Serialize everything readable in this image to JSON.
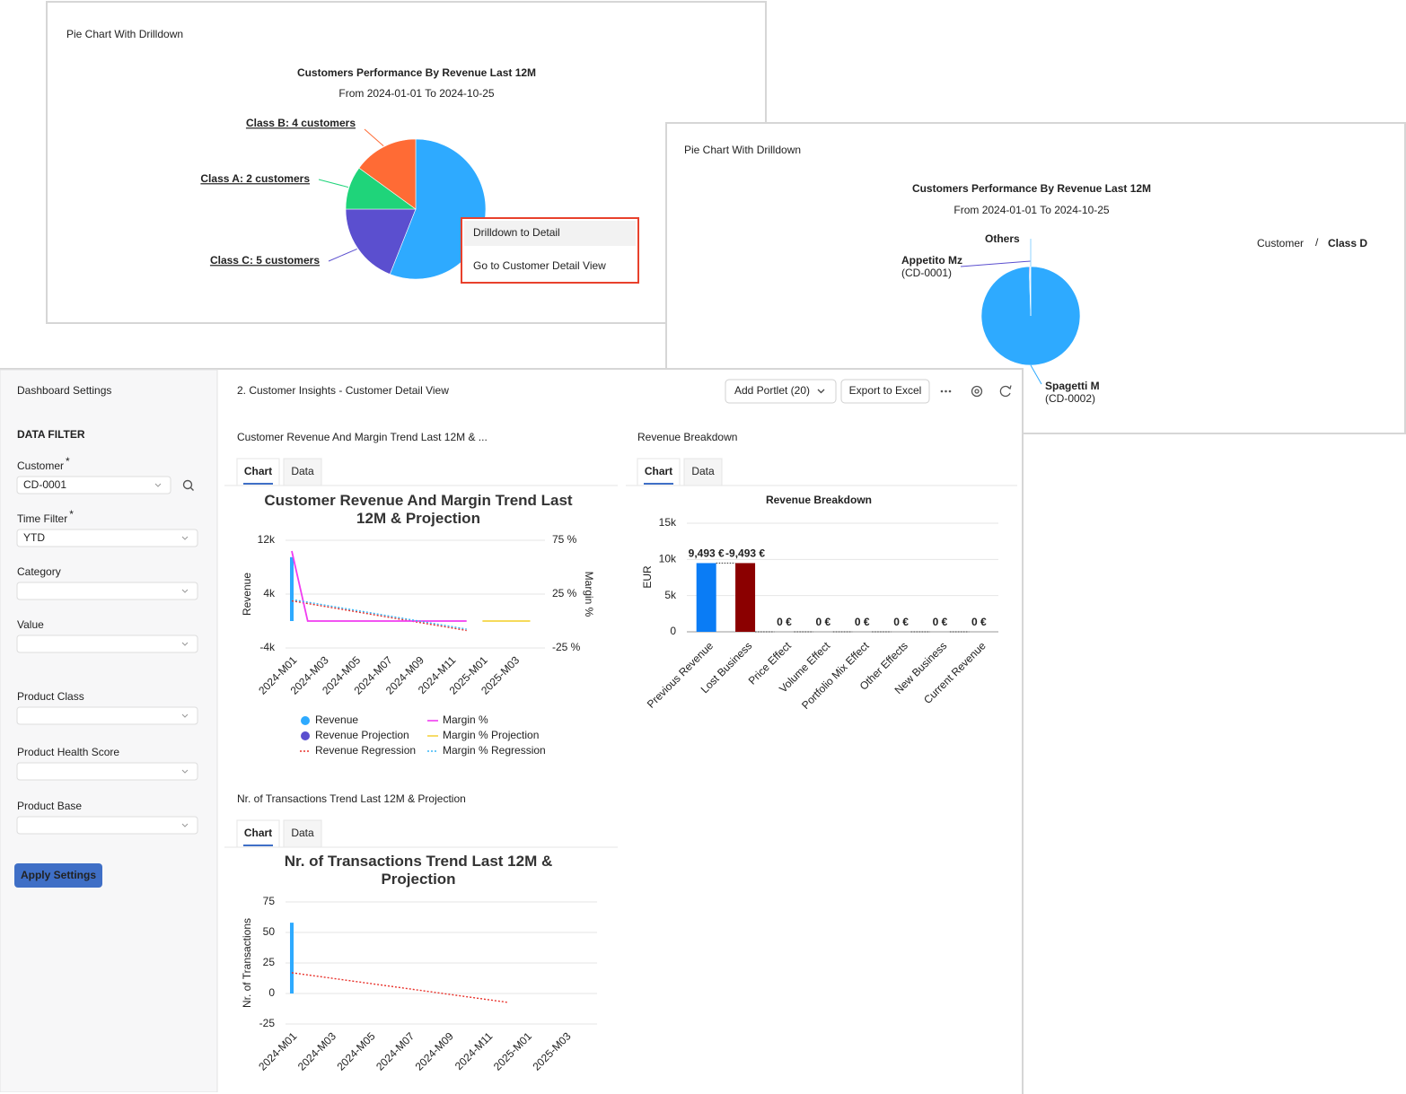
{
  "drilldown_panel": {
    "header": "Pie Chart With Drilldown",
    "chart_data": {
      "type": "pie",
      "title": "Customers Performance By Revenue Last 12M",
      "subtitle": "From 2024-01-01 To 2024-10-25",
      "categories": [
        null,
        "Class C: 5 customers",
        "Class A: 2 customers",
        "Class B: 4 customers"
      ],
      "values": [
        56,
        19,
        10,
        15
      ],
      "colors": [
        "#2eaaff",
        "#5b4fcf",
        "#1fd47a",
        "#ff6b35"
      ]
    },
    "context_menu": [
      "Drilldown to Detail",
      "Go to Customer Detail View"
    ]
  },
  "detail_panel": {
    "header": "Pie Chart With Drilldown",
    "breadcrumb": {
      "items": [
        "Customer",
        "Class D"
      ],
      "separator": "/"
    },
    "chart_data": {
      "type": "pie",
      "title": "Customers Performance By Revenue Last 12M",
      "subtitle": "From 2024-01-01 To 2024-10-25",
      "categories": [
        {
          "name": "Spagetti M",
          "code": "(CD-0002)"
        },
        {
          "name": "Appetito Mz",
          "code": "(CD-0001)"
        },
        {
          "name": "Others"
        }
      ],
      "values": [
        99.5,
        0.3,
        0.2
      ],
      "colors": [
        "#2eaaff",
        "#5b4fcf",
        "#8fd3ff"
      ]
    }
  },
  "dashboard": {
    "sidebar": {
      "title": "Dashboard Settings",
      "section": "DATA FILTER",
      "fields": [
        {
          "label": "Customer",
          "mark": "*",
          "value": "CD-0001"
        },
        {
          "label": "Time Filter",
          "mark": "*",
          "value": "YTD"
        },
        {
          "label": "Category"
        },
        {
          "label": "Value"
        },
        {
          "label": "Product Class"
        },
        {
          "label": "Product Health Score"
        },
        {
          "label": "Product Base"
        }
      ],
      "button": "Apply Settings"
    },
    "title": "2. Customer Insights - Customer Detail View",
    "buttons": [
      "Add Portlet (20)",
      "Export to Excel"
    ],
    "portlets": [
      {
        "header": "Customer Revenue And Margin Trend Last 12M & ...",
        "tabs": [
          "Chart",
          "Data"
        ],
        "chart_data": {
          "type": "line",
          "title": "Customer Revenue And Margin Trend Last 12M & Projection",
          "ylabel": "Revenue",
          "y2label": "Margin %",
          "categories": [
            "2024-M01",
            null,
            "2024-M03",
            null,
            "2024-M05",
            null,
            "2024-M07",
            null,
            "2024-M09",
            null,
            "2024-M11",
            null,
            "2025-M01",
            null,
            "2025-M03",
            null
          ],
          "ylim": [
            -4000,
            12000
          ],
          "yticks": [
            {
              "value": -4000,
              "label": "-4k"
            },
            {
              "value": 4000,
              "label": "4k"
            },
            {
              "value": 12000,
              "label": "12k"
            }
          ],
          "y2lim": [
            -25,
            75
          ],
          "y2ticks": [
            {
              "value": -25,
              "label": "-25 %"
            },
            {
              "value": 25,
              "label": "25 %"
            },
            {
              "value": 75,
              "label": "75 %"
            }
          ],
          "grid": true,
          "legend": "bottom",
          "series": [
            {
              "name": "Revenue",
              "color": "#2eaaff",
              "kind": "bar",
              "values": [
                9493,
                0,
                0,
                0,
                0,
                0,
                0,
                0,
                0,
                0,
                0,
                0,
                null,
                null,
                null,
                null
              ]
            },
            {
              "name": "Revenue Projection",
              "color": "#5b4fcf",
              "kind": "bar",
              "values": [
                null,
                null,
                null,
                null,
                null,
                null,
                null,
                null,
                null,
                null,
                null,
                null,
                0,
                0,
                0,
                0
              ]
            },
            {
              "name": "Revenue Regression",
              "color": "#e8322b",
              "kind": "dotted",
              "values": [
                3000,
                2600,
                2200,
                1800,
                1400,
                1000,
                600,
                200,
                -200,
                -600,
                -1000,
                -1400,
                null,
                null,
                null,
                null
              ]
            },
            {
              "name": "Margin %",
              "color": "#f03cf0",
              "kind": "line",
              "axis": "y2",
              "values": [
                65,
                0,
                0,
                0,
                0,
                0,
                0,
                0,
                0,
                0,
                0,
                0,
                null,
                null,
                null,
                null
              ]
            },
            {
              "name": "Margin % Projection",
              "color": "#f5d442",
              "kind": "line",
              "axis": "y2",
              "values": [
                null,
                null,
                null,
                null,
                null,
                null,
                null,
                null,
                null,
                null,
                null,
                null,
                0,
                0,
                0,
                0
              ]
            },
            {
              "name": "Margin % Regression",
              "color": "#38b6f5",
              "kind": "dotted",
              "axis": "y2",
              "values": [
                20,
                17.5,
                15,
                12.5,
                10,
                7.5,
                5,
                2.5,
                0,
                -2.5,
                -5,
                -7.5,
                null,
                null,
                null,
                null
              ]
            }
          ]
        }
      },
      {
        "header": "Revenue Breakdown",
        "tabs": [
          "Chart",
          "Data"
        ],
        "chart_data": {
          "type": "waterfall",
          "title": "Revenue Breakdown",
          "ylabel": "EUR",
          "categories": [
            "Previous Revenue",
            "Lost Business",
            "Price Effect",
            "Volume Effect",
            "Portfolio Mix Effect",
            "Other Effects",
            "New Business",
            "Current Revenue"
          ],
          "values": [
            9493,
            -9493,
            0,
            0,
            0,
            0,
            0,
            0
          ],
          "value_labels": [
            "9,493 €",
            "-9,493 €",
            "0 €",
            "0 €",
            "0 €",
            "0 €",
            "0 €",
            "0 €"
          ],
          "colors": {
            "total": "#0a7cf5",
            "decrease": "#8b0000"
          },
          "ylim": [
            0,
            15000
          ],
          "yticks": [
            0,
            {
              "value": 5000,
              "label": "5k"
            },
            {
              "value": 10000,
              "label": "10k"
            },
            {
              "value": 15000,
              "label": "15k"
            }
          ],
          "grid": true
        }
      },
      {
        "header": "Nr. of Transactions Trend Last 12M & Projection",
        "tabs": [
          "Chart",
          "Data"
        ],
        "chart_data": {
          "type": "line",
          "title": "Nr. of Transactions Trend Last 12M & Projection",
          "ylabel": "Nr. of Transactions",
          "categories": [
            "2024-M01",
            null,
            "2024-M03",
            null,
            "2024-M05",
            null,
            "2024-M07",
            null,
            "2024-M09",
            null,
            "2024-M11",
            null,
            "2025-M01",
            null,
            "2025-M03",
            null
          ],
          "ylim": [
            -25,
            75
          ],
          "yticks": [
            -25,
            0,
            25,
            50,
            75
          ],
          "grid": true,
          "series": [
            {
              "color": "#2eaaff",
              "kind": "bar",
              "values": [
                58,
                0,
                0,
                0,
                0,
                0,
                0,
                0,
                0,
                0,
                0,
                0,
                null,
                null,
                null,
                null
              ]
            },
            {
              "color": "#e8322b",
              "kind": "dotted",
              "values": [
                17,
                14.8,
                12.6,
                10.4,
                8.2,
                6,
                3.8,
                1.6,
                -0.6,
                -2.8,
                -5,
                -7.2,
                null,
                null,
                null,
                null
              ]
            }
          ]
        }
      }
    ]
  }
}
